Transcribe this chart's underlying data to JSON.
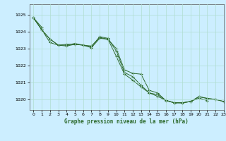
{
  "title": "Graphe pression niveau de la mer (hPa)",
  "bg_color": "#cceeff",
  "line_color": "#2d6a2d",
  "grid_color": "#b0ddd0",
  "xlim": [
    -0.5,
    23
  ],
  "ylim": [
    1019.4,
    1025.6
  ],
  "yticks": [
    1020,
    1021,
    1022,
    1023,
    1024,
    1025
  ],
  "xticks": [
    0,
    1,
    2,
    3,
    4,
    5,
    6,
    7,
    8,
    9,
    10,
    11,
    12,
    13,
    14,
    15,
    16,
    17,
    18,
    19,
    20,
    21,
    22,
    23
  ],
  "series": [
    [
      1024.8,
      1024.25,
      null,
      null,
      null,
      null,
      null,
      null,
      null,
      null,
      null,
      null,
      null,
      null,
      null,
      null,
      null,
      null,
      null,
      null,
      null,
      null,
      null,
      null
    ],
    [
      1024.8,
      1024.1,
      1023.35,
      1023.2,
      1023.25,
      1023.25,
      1023.2,
      1023.15,
      1023.65,
      1023.55,
      1023.0,
      1021.75,
      1021.55,
      1021.5,
      1020.55,
      1020.4,
      1019.95,
      1019.83,
      1019.82,
      1019.9,
      1020.1,
      1019.95,
      null,
      null
    ],
    [
      1024.8,
      1024.1,
      1023.55,
      1023.2,
      1023.2,
      1023.3,
      1023.2,
      1023.1,
      1023.7,
      1023.6,
      1022.85,
      1021.6,
      1021.35,
      1020.85,
      1020.4,
      1020.3,
      1019.97,
      1019.82,
      1019.82,
      1019.9,
      1020.18,
      1020.08,
      1020.02,
      1019.9
    ],
    [
      1024.8,
      1024.1,
      1023.55,
      1023.2,
      1023.15,
      1023.25,
      1023.2,
      1023.05,
      1023.6,
      1023.55,
      1022.55,
      1021.5,
      1021.15,
      1020.75,
      1020.4,
      1020.2,
      1019.97,
      1019.82,
      1019.82,
      1019.9,
      1020.18,
      1020.08,
      1020.02,
      1019.9
    ]
  ]
}
